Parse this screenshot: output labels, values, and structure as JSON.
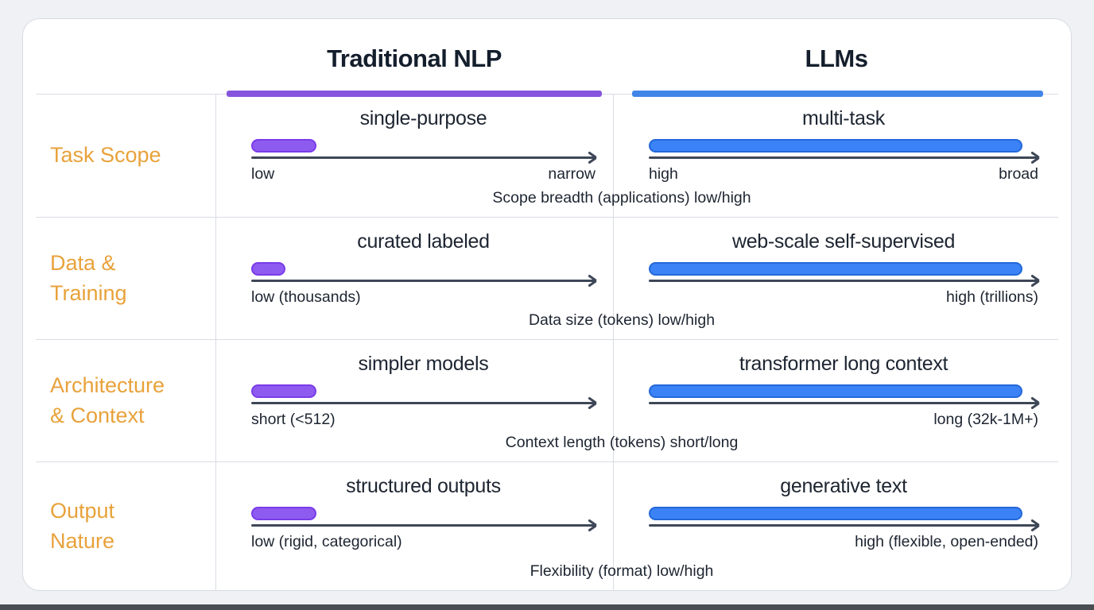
{
  "diagram": {
    "header": {
      "traditional_label": "Traditional NLP",
      "llm_label": "LLMs"
    },
    "rows": [
      {
        "label_lines": [
          "Task Scope"
        ],
        "caption": "Scope breadth (applications) low/high",
        "traditional": {
          "title": "single-purpose",
          "bar_percent": 19,
          "left_label": "low",
          "right_label": "narrow"
        },
        "llm": {
          "title": "multi-task",
          "bar_percent": 96,
          "left_label": "high",
          "right_label": "broad"
        }
      },
      {
        "label_lines": [
          "Data &",
          "Training"
        ],
        "caption": "Data size (tokens) low/high",
        "traditional": {
          "title": "curated labeled",
          "bar_percent": 10,
          "left_label": "low (thousands)",
          "right_label": ""
        },
        "llm": {
          "title": "web-scale self-supervised",
          "bar_percent": 96,
          "left_label": "",
          "right_label": "high (trillions)"
        }
      },
      {
        "label_lines": [
          "Architecture",
          "& Context"
        ],
        "caption": "Context length (tokens) short/long",
        "traditional": {
          "title": "simpler models",
          "bar_percent": 19,
          "left_label": "short (<512)",
          "right_label": ""
        },
        "llm": {
          "title": "transformer long context",
          "bar_percent": 96,
          "left_label": "",
          "right_label": "long (32k-1M+)"
        }
      },
      {
        "label_lines": [
          "Output",
          "Nature"
        ],
        "caption": "Flexibility (format) low/high",
        "traditional": {
          "title": "structured outputs",
          "bar_percent": 19,
          "left_label": "low (rigid, categorical)",
          "right_label": ""
        },
        "llm": {
          "title": "generative text",
          "bar_percent": 96,
          "left_label": "",
          "right_label": "high (flexible, open-ended)"
        }
      }
    ],
    "colors": {
      "traditional_accent": "#8655dd",
      "traditional_bar": "#8e5bf0",
      "llm_accent": "#4285e8",
      "llm_bar": "#3b82f6",
      "row_label_orange": "#e8a23b",
      "text_dark": "#1d2531",
      "axis_arrow": "#3e4757"
    }
  }
}
